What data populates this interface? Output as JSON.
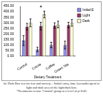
{
  "chart_data": {
    "type": "bar",
    "x_label": "Dietary Treatment",
    "categories": [
      "Control",
      "Cocoa",
      "Coffee",
      "Green Tea"
    ],
    "series": [
      {
        "name": "Initial E",
        "color": "#8b8bf0",
        "values": [
          140,
          60,
          100,
          100
        ],
        "errors": [
          45,
          20,
          25,
          35
        ]
      },
      {
        "name": "Light",
        "color": "#993366",
        "values": [
          265,
          270,
          275,
          280
        ],
        "errors": [
          30,
          35,
          25,
          25
        ]
      },
      {
        "name": "Dark",
        "color": "#ffffcc",
        "values": [
          300,
          375,
          285,
          300
        ],
        "errors": [
          35,
          30,
          30,
          30
        ]
      }
    ],
    "ylim": [
      0,
      450
    ],
    "yticks": [
      {
        "value": 0,
        "label": "0.00"
      },
      {
        "value": 50,
        "label": "50.00"
      },
      {
        "value": 100,
        "label": "100.00"
      },
      {
        "value": 150,
        "label": "150.00"
      },
      {
        "value": 200,
        "label": "200.00"
      },
      {
        "value": 250,
        "label": "250.00"
      },
      {
        "value": 300,
        "label": "300.00"
      },
      {
        "value": 350,
        "label": "350.00"
      },
      {
        "value": 400,
        "label": "400.00"
      },
      {
        "value": 450,
        "label": "450.00"
      }
    ],
    "grid": false,
    "legend": "right",
    "annotations": [
      {
        "text": "*",
        "category": "Cocoa"
      }
    ],
    "caption": [
      "ht: Dark Box test for fear and anxiety – Initial entry, time (seconds) spent in light and dark area of the light/dark box.",
      "*Treatments versus ‘Control’ group at a level of p<0.05"
    ]
  }
}
